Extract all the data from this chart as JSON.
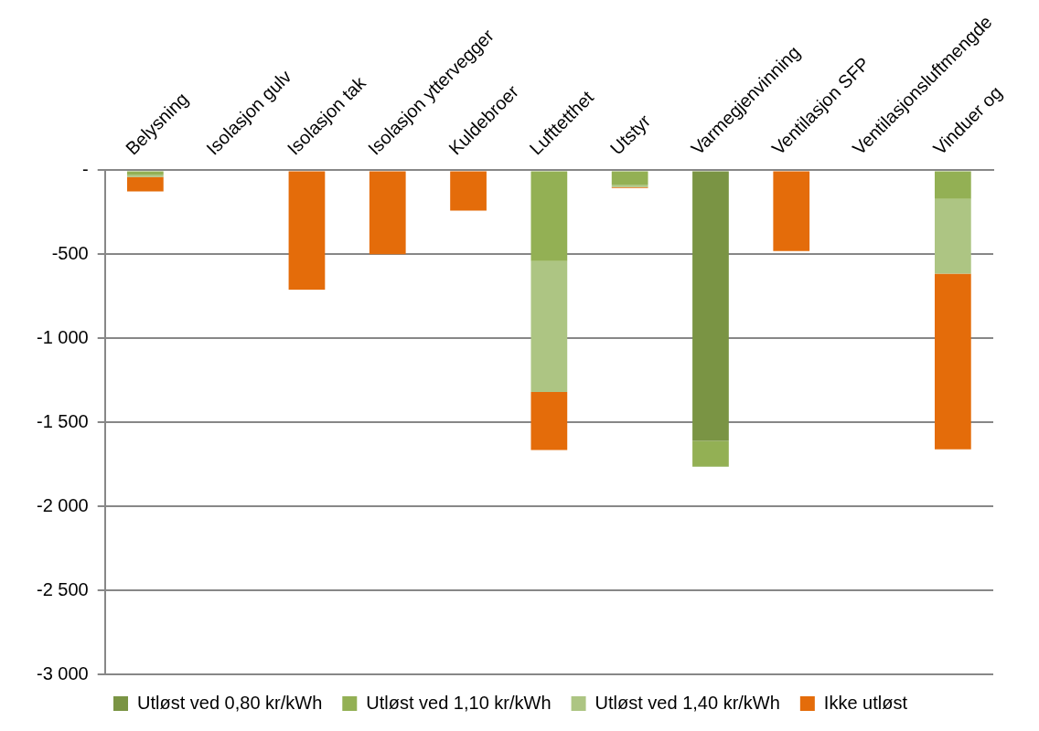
{
  "chart_data": {
    "type": "bar",
    "stacked": true,
    "categories": [
      "Belysning",
      "Isolasjon gulv",
      "Isolasjon tak",
      "Isolasjon yttervegger",
      "Kuldebroer",
      "Lufttetthet",
      "Utstyr",
      "Varmegjenvinning",
      "Ventilasjon SFP",
      "Ventilasjonsluftmengde",
      "Vinduer og"
    ],
    "series": [
      {
        "name": "Utløst ved 0,80 kr/kWh",
        "color": "#7a9444",
        "values": [
          null,
          null,
          null,
          null,
          null,
          null,
          null,
          -1610,
          null,
          null,
          null
        ]
      },
      {
        "name": "Utløst ved 1,10 kr/kWh",
        "color": "#93b054",
        "values": [
          -25,
          null,
          null,
          null,
          null,
          -540,
          -85,
          -150,
          null,
          null,
          -170
        ]
      },
      {
        "name": "Utløst ved 1,40 kr/kWh",
        "color": "#adc583",
        "values": [
          -15,
          null,
          null,
          null,
          null,
          -780,
          -15,
          -5,
          null,
          null,
          -445
        ]
      },
      {
        "name": "Ikke utløst",
        "color": "#e46c0a",
        "values": [
          -85,
          null,
          -710,
          -500,
          -240,
          -345,
          -5,
          null,
          -480,
          null,
          -1045
        ]
      }
    ],
    "ylim": [
      -3000,
      0
    ],
    "yticks": [
      {
        "value": 0,
        "label": "-"
      },
      -500,
      {
        "value": -1000,
        "label": "-1 000"
      },
      {
        "value": -1500,
        "label": "-1 500"
      },
      {
        "value": -2000,
        "label": "-2 000"
      },
      {
        "value": -2500,
        "label": "-2 500"
      },
      {
        "value": -3000,
        "label": "-3 000"
      }
    ],
    "grid": "y",
    "legend": "bottom"
  }
}
